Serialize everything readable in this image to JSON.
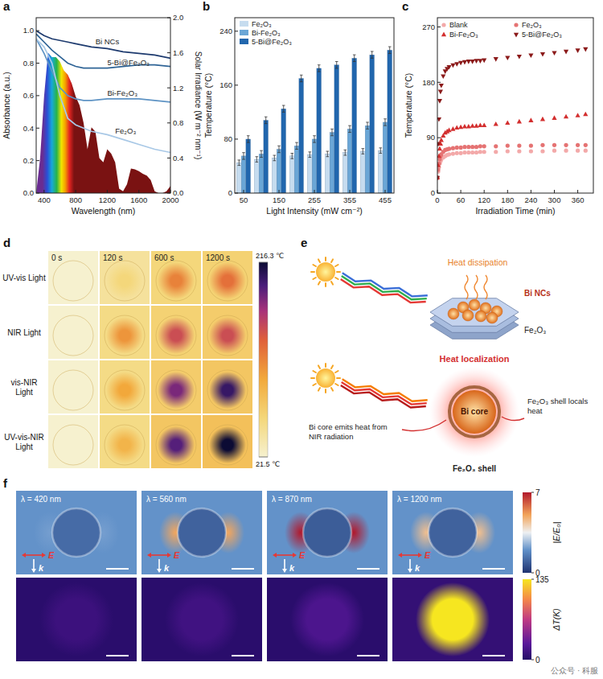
{
  "panel_labels": [
    "a",
    "b",
    "c",
    "d",
    "e",
    "f"
  ],
  "chart_data": [
    {
      "type": "line",
      "x_label": "Wavelength (nm)",
      "y_label": "Absorbance (a.u.)",
      "y2_label": "Solar Irradiance (W m⁻² nm⁻¹)",
      "x": [
        300,
        400,
        500,
        600,
        700,
        800,
        900,
        1000,
        1200,
        1400,
        1600,
        1800,
        2000
      ],
      "xlim": [
        300,
        2000
      ],
      "xticks": [
        400,
        800,
        1200,
        1600,
        2000
      ],
      "ylim": [
        0,
        1.08
      ],
      "yticks": [
        {
          "value": 0,
          "label": "0.0"
        },
        0.2,
        0.4,
        0.6,
        0.8,
        {
          "value": 1,
          "label": "1.0"
        }
      ],
      "y2lim": [
        0,
        2.0
      ],
      "y2ticks": [
        {
          "value": 0,
          "label": "0.0"
        },
        0.4,
        0.8,
        1.2,
        1.6,
        {
          "value": 2,
          "label": "2.0"
        }
      ],
      "series": [
        {
          "name": "Bi NCs",
          "color": "#1d3a6e",
          "values": [
            1.0,
            0.97,
            0.95,
            0.94,
            0.93,
            0.92,
            0.91,
            0.9,
            0.89,
            0.87,
            0.86,
            0.85,
            0.83
          ]
        },
        {
          "name": "5-Bi@Fe₂O₃",
          "color": "#2f6496",
          "values": [
            0.98,
            0.93,
            0.88,
            0.84,
            0.8,
            0.78,
            0.77,
            0.77,
            0.77,
            0.78,
            0.79,
            0.79,
            0.78
          ]
        },
        {
          "name": "Bi-Fe₂O₃",
          "color": "#5e93c4",
          "values": [
            0.95,
            0.86,
            0.75,
            0.65,
            0.6,
            0.58,
            0.57,
            0.57,
            0.58,
            0.58,
            0.58,
            0.57,
            0.56
          ]
        },
        {
          "name": "Fe₂O₃",
          "color": "#a8c8e6",
          "values": [
            0.95,
            0.9,
            0.8,
            0.6,
            0.46,
            0.42,
            0.4,
            0.38,
            0.36,
            0.33,
            0.3,
            0.27,
            0.25
          ]
        },
        {
          "type": "area",
          "axis": "y2",
          "color": "#7a1212",
          "x": [
            300,
            350,
            400,
            450,
            500,
            550,
            600,
            650,
            700,
            750,
            800,
            850,
            900,
            950,
            1000,
            1050,
            1100,
            1150,
            1200,
            1250,
            1300,
            1350,
            1400,
            1450,
            1500,
            1550,
            1600,
            1650,
            1700,
            1750,
            1800,
            1850,
            1900,
            1950,
            2000
          ],
          "values": [
            0,
            0.4,
            1.1,
            1.6,
            1.55,
            1.55,
            1.5,
            1.4,
            1.35,
            1.25,
            1.1,
            1.0,
            0.8,
            0.5,
            0.75,
            0.7,
            0.4,
            0.35,
            0.5,
            0.45,
            0.35,
            0.05,
            0.02,
            0.1,
            0.28,
            0.27,
            0.25,
            0.22,
            0.2,
            0.15,
            0.02,
            0.0,
            0.0,
            0.02,
            0.08
          ]
        }
      ]
    },
    {
      "type": "bar",
      "x_label": "Light Intensity (mW cm⁻²)",
      "y_label": "Temperature (°C)",
      "categories": [
        "50",
        null,
        "150",
        null,
        "255",
        null,
        "355",
        null,
        "455"
      ],
      "ylim": [
        0,
        260
      ],
      "yticks": [
        0,
        80,
        160,
        240
      ],
      "legend": "top-left",
      "series": [
        {
          "name": "Fe₂O₃",
          "color": "#c6dcef",
          "values": [
            45,
            50,
            52,
            55,
            57,
            58,
            60,
            62,
            63
          ],
          "errors": [
            4,
            4,
            4,
            4,
            4,
            4,
            4,
            4,
            4
          ]
        },
        {
          "name": "Bi-Fe₂O₃",
          "color": "#6aa6d6",
          "values": [
            55,
            58,
            65,
            70,
            80,
            90,
            95,
            100,
            105
          ],
          "errors": [
            5,
            5,
            5,
            5,
            5,
            5,
            5,
            5,
            5
          ]
        },
        {
          "name": "5-Bi@Fe₂O₃",
          "color": "#2166ad",
          "values": [
            80,
            108,
            125,
            170,
            185,
            190,
            200,
            205,
            212
          ],
          "errors": [
            5,
            5,
            5,
            5,
            5,
            5,
            5,
            5,
            5
          ]
        }
      ]
    },
    {
      "type": "scatter",
      "x_label": "Irradiation Time (min)",
      "y_label": "Temperature (°C)",
      "x": [
        0,
        2,
        4,
        6,
        8,
        10,
        15,
        20,
        25,
        30,
        40,
        50,
        60,
        70,
        80,
        90,
        100,
        110,
        120,
        150,
        180,
        210,
        240,
        270,
        300,
        330,
        360,
        380
      ],
      "xlim": [
        0,
        400
      ],
      "xticks": [
        0,
        60,
        120,
        180,
        240,
        300,
        360
      ],
      "ylim": [
        0,
        285
      ],
      "yticks": [
        0,
        90,
        180,
        270
      ],
      "legend": "top",
      "series": [
        {
          "name": "Blank",
          "color": "#f3a9a9",
          "marker": "circle",
          "values": [
            25,
            35,
            42,
            48,
            52,
            55,
            58,
            60,
            62,
            63,
            64,
            65,
            65,
            66,
            66,
            66,
            66,
            67,
            67,
            67,
            68,
            68,
            68,
            68,
            69,
            69,
            69,
            69
          ]
        },
        {
          "name": "Fe₂O₃",
          "color": "#e57373",
          "marker": "circle",
          "values": [
            25,
            38,
            48,
            55,
            60,
            63,
            67,
            70,
            71,
            72,
            73,
            74,
            74,
            75,
            75,
            75,
            75,
            76,
            76,
            76,
            77,
            77,
            77,
            78,
            78,
            78,
            78,
            78
          ]
        },
        {
          "name": "Bi-Fe₂O₃",
          "color": "#d32f2f",
          "marker": "triangle",
          "values": [
            25,
            45,
            60,
            72,
            80,
            86,
            93,
            98,
            100,
            102,
            104,
            106,
            107,
            108,
            108,
            109,
            109,
            110,
            110,
            112,
            114,
            116,
            118,
            120,
            122,
            124,
            126,
            128
          ]
        },
        {
          "name": "5-Bi@Fe₂O₃",
          "color": "#8b1a1a",
          "marker": "triangle-down",
          "values": [
            25,
            80,
            120,
            150,
            165,
            175,
            190,
            198,
            202,
            205,
            208,
            210,
            212,
            213,
            214,
            214,
            215,
            215,
            216,
            218,
            220,
            222,
            224,
            226,
            228,
            230,
            232,
            234
          ]
        }
      ]
    }
  ],
  "thermal_images": {
    "row_labels": [
      "UV-vis Light",
      "NIR Light",
      "vis-NIR Light",
      "UV-vis-NIR Light"
    ],
    "column_labels": [
      "0 s",
      "120 s",
      "600 s",
      "1200 s"
    ],
    "center_temperatures": [
      [
        21.5,
        60,
        120,
        130
      ],
      [
        21.5,
        110,
        150,
        150
      ],
      [
        21.5,
        100,
        180,
        200
      ],
      [
        21.5,
        90,
        190,
        216
      ]
    ],
    "edge_temperatures": [
      [
        21.5,
        45,
        60,
        65
      ],
      [
        21.5,
        55,
        65,
        70
      ],
      [
        21.5,
        55,
        70,
        75
      ],
      [
        21.5,
        55,
        75,
        80
      ]
    ],
    "colorbar_range": [
      21.5,
      216.3
    ],
    "colorbar_ticks": [
      {
        "value": 216.3,
        "label": "216.3 ℃"
      },
      {
        "value": 21.5,
        "label": "21.5 ℃"
      }
    ]
  },
  "schematic": {
    "top_title": "Heat dissipation",
    "top_labels": [
      "Bi NCs",
      "Fe₂O₃"
    ],
    "bottom_title": "Heat localization",
    "core_note": "Bi core emits heat from NIR radiation",
    "shell_note": "Fe₂O₃ shell locals heat",
    "core_label": "Bi core",
    "shell_label": "Fe₂O₃ shell"
  },
  "simulation": {
    "wavelength_labels": [
      "λ = 420 nm",
      "λ = 560 nm",
      "λ = 870 nm",
      "λ = 1200 nm"
    ],
    "field_labels": [
      "E",
      "k"
    ],
    "field_max": [
      2.2,
      5,
      7,
      4.5
    ],
    "field_background": [
      2,
      2,
      2,
      2
    ],
    "field_inside": [
      1.2,
      1,
      0.9,
      1
    ],
    "field_colorbar": {
      "label": "|E/E₀|",
      "range": [
        0,
        7
      ],
      "ticks": [
        0,
        7
      ]
    },
    "delta_t_max": [
      12,
      14,
      20,
      135
    ],
    "delta_t_background": [
      3,
      3,
      3,
      8
    ],
    "delta_t_colorbar": {
      "label": "ΔT(K)",
      "range": [
        0,
        135
      ],
      "ticks": [
        0,
        135
      ]
    }
  },
  "watermark": "公众号 · 科服"
}
